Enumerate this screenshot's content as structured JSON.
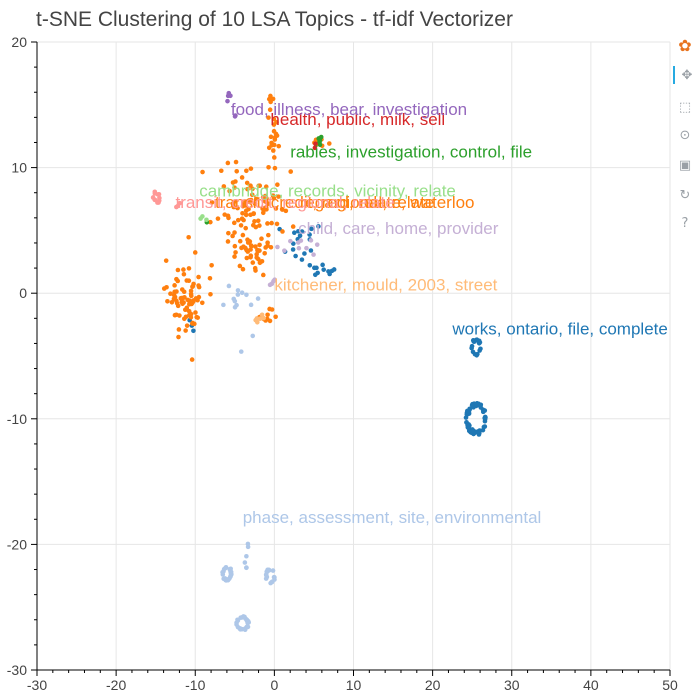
{
  "chart_data": {
    "type": "scatter",
    "title": "t-SNE Clustering of 10 LSA Topics - tf-idf Vectorizer",
    "xlabel": "",
    "ylabel": "",
    "xlim": [
      -30,
      50
    ],
    "ylim": [
      -30,
      20
    ],
    "x_ticks": [
      -30,
      -20,
      -10,
      0,
      10,
      20,
      30,
      40,
      50
    ],
    "y_ticks": [
      -30,
      -20,
      -10,
      0,
      10,
      20
    ],
    "grid": true,
    "series": [
      {
        "name": "works, ontario, file, complete",
        "color": "#1f77b4",
        "label_at": [
          22.5,
          -3.3
        ],
        "clusters": [
          {
            "cx": 25.5,
            "cy": -10.0,
            "rx": 1.3,
            "ry": 1.3,
            "n": 70,
            "shape": "ring"
          },
          {
            "cx": 25.5,
            "cy": -4.3,
            "rx": 0.6,
            "ry": 0.7,
            "n": 18,
            "shape": "ring"
          },
          {
            "cx": 3.5,
            "cy": 4.0,
            "rx": 2.5,
            "ry": 1.6,
            "n": 18,
            "shape": "blob"
          },
          {
            "cx": 6.0,
            "cy": 1.8,
            "rx": 1.6,
            "ry": 0.5,
            "n": 10,
            "shape": "blob"
          },
          {
            "cx": -10.5,
            "cy": -2.7,
            "rx": 0.6,
            "ry": 0.4,
            "n": 3,
            "shape": "blob"
          }
        ]
      },
      {
        "name": "phase, assessment, site, environmental",
        "color": "#aec7e8",
        "label_at": [
          -4,
          -18.3
        ],
        "clusters": [
          {
            "cx": -6.0,
            "cy": -22.3,
            "rx": 0.6,
            "ry": 0.6,
            "n": 25,
            "shape": "ring"
          },
          {
            "cx": -4.0,
            "cy": -26.3,
            "rx": 0.8,
            "ry": 0.6,
            "n": 28,
            "shape": "ring"
          },
          {
            "cx": -0.5,
            "cy": -22.5,
            "rx": 0.6,
            "ry": 0.6,
            "n": 18,
            "shape": "ring"
          },
          {
            "cx": -3.5,
            "cy": -21.0,
            "rx": 0.3,
            "ry": 1.0,
            "n": 6,
            "shape": "blob"
          },
          {
            "cx": -4.5,
            "cy": -1.5,
            "rx": 3.0,
            "ry": 2.5,
            "n": 14,
            "shape": "blob"
          }
        ]
      },
      {
        "name": "transit, credit, regional, relate",
        "color": "#ff7f0e",
        "label_at": [
          -7.5,
          6.8
        ],
        "clusters": [
          {
            "cx": -11.0,
            "cy": -0.5,
            "rx": 2.3,
            "ry": 2.5,
            "n": 80,
            "shape": "blob"
          },
          {
            "cx": -3.0,
            "cy": 7.0,
            "rx": 4.2,
            "ry": 3.0,
            "n": 95,
            "shape": "blob"
          },
          {
            "cx": -3.0,
            "cy": 3.2,
            "rx": 2.0,
            "ry": 1.6,
            "n": 40,
            "shape": "blob"
          },
          {
            "cx": 0.0,
            "cy": 12.5,
            "rx": 1.2,
            "ry": 2.2,
            "n": 18,
            "shape": "blob"
          },
          {
            "cx": 5.5,
            "cy": 12.0,
            "rx": 0.8,
            "ry": 0.4,
            "n": 8,
            "shape": "blob"
          },
          {
            "cx": -1.0,
            "cy": -1.8,
            "rx": 1.0,
            "ry": 1.0,
            "n": 10,
            "shape": "blob"
          },
          {
            "cx": -0.5,
            "cy": 15.0,
            "rx": 0.4,
            "ry": 0.8,
            "n": 5,
            "shape": "blob"
          }
        ]
      },
      {
        "name": "kitchener, mould, 2003, street",
        "color": "#ffbb78",
        "label_at": [
          0,
          0.2
        ],
        "clusters": [
          {
            "cx": -2.0,
            "cy": -2.0,
            "rx": 0.8,
            "ry": 0.6,
            "n": 6,
            "shape": "blob"
          }
        ]
      },
      {
        "name": "rabies, investigation, control, file",
        "color": "#2ca02c",
        "label_at": [
          2,
          10.8
        ],
        "clusters": [
          {
            "cx": 5.5,
            "cy": 12.0,
            "rx": 0.6,
            "ry": 0.5,
            "n": 6,
            "shape": "blob"
          },
          {
            "cx": -8.5,
            "cy": 5.7,
            "rx": 0.2,
            "ry": 0.2,
            "n": 1,
            "shape": "blob"
          }
        ]
      },
      {
        "name": "cambridge, records, vicinity, relate",
        "color": "#98df8a",
        "label_at": [
          -9.5,
          7.7
        ],
        "clusters": [
          {
            "cx": -9.0,
            "cy": 6.0,
            "rx": 0.4,
            "ry": 0.3,
            "n": 3,
            "shape": "blob"
          }
        ]
      },
      {
        "name": "health, public, milk, sell",
        "color": "#d62728",
        "label_at": [
          -0.5,
          13.4
        ],
        "clusters": [
          {
            "cx": 5.0,
            "cy": 11.8,
            "rx": 0.3,
            "ry": 0.3,
            "n": 2,
            "shape": "blob"
          }
        ]
      },
      {
        "name": "regard, relate, waterloo",
        "color": "#ff7f0e",
        "label_at": [
          3.2,
          6.8
        ],
        "clusters": []
      },
      {
        "name": "food, illness, bear, investigation",
        "color": "#9467bd",
        "label_at": [
          -5.5,
          14.2
        ],
        "clusters": [
          {
            "cx": -5.8,
            "cy": 15.7,
            "rx": 0.3,
            "ry": 0.5,
            "n": 4,
            "shape": "blob"
          },
          {
            "cx": -5.0,
            "cy": 14.0,
            "rx": 0.3,
            "ry": 0.3,
            "n": 2,
            "shape": "blob"
          }
        ]
      },
      {
        "name": "child, care, home, provider",
        "color": "#c5b0d5",
        "label_at": [
          3,
          4.7
        ],
        "clusters": [
          {
            "cx": 2.5,
            "cy": 3.8,
            "rx": 2.5,
            "ry": 0.5,
            "n": 10,
            "shape": "blob"
          },
          {
            "cx": 0.0,
            "cy": 1.0,
            "rx": 0.6,
            "ry": 0.6,
            "n": 4,
            "shape": "blob"
          }
        ]
      },
      {
        "name": "transit, credit, regional, relate",
        "color": "#ff9896",
        "label_at": [
          -12.5,
          6.8
        ],
        "clusters": [
          {
            "cx": -15.0,
            "cy": 7.5,
            "rx": 0.6,
            "ry": 0.7,
            "n": 12,
            "shape": "blob"
          },
          {
            "cx": -12.5,
            "cy": 7.0,
            "rx": 0.4,
            "ry": 0.4,
            "n": 3,
            "shape": "blob"
          }
        ]
      }
    ]
  },
  "toolbar": {
    "items": [
      {
        "name": "bokeh-logo-icon",
        "glyph": "✿"
      },
      {
        "name": "pan-icon",
        "glyph": "✥"
      },
      {
        "name": "box-zoom-icon",
        "glyph": "⬚"
      },
      {
        "name": "wheel-zoom-icon",
        "glyph": "⊙"
      },
      {
        "name": "save-icon",
        "glyph": "▣"
      },
      {
        "name": "reset-icon",
        "glyph": "↻"
      },
      {
        "name": "help-icon",
        "glyph": "?"
      }
    ]
  }
}
